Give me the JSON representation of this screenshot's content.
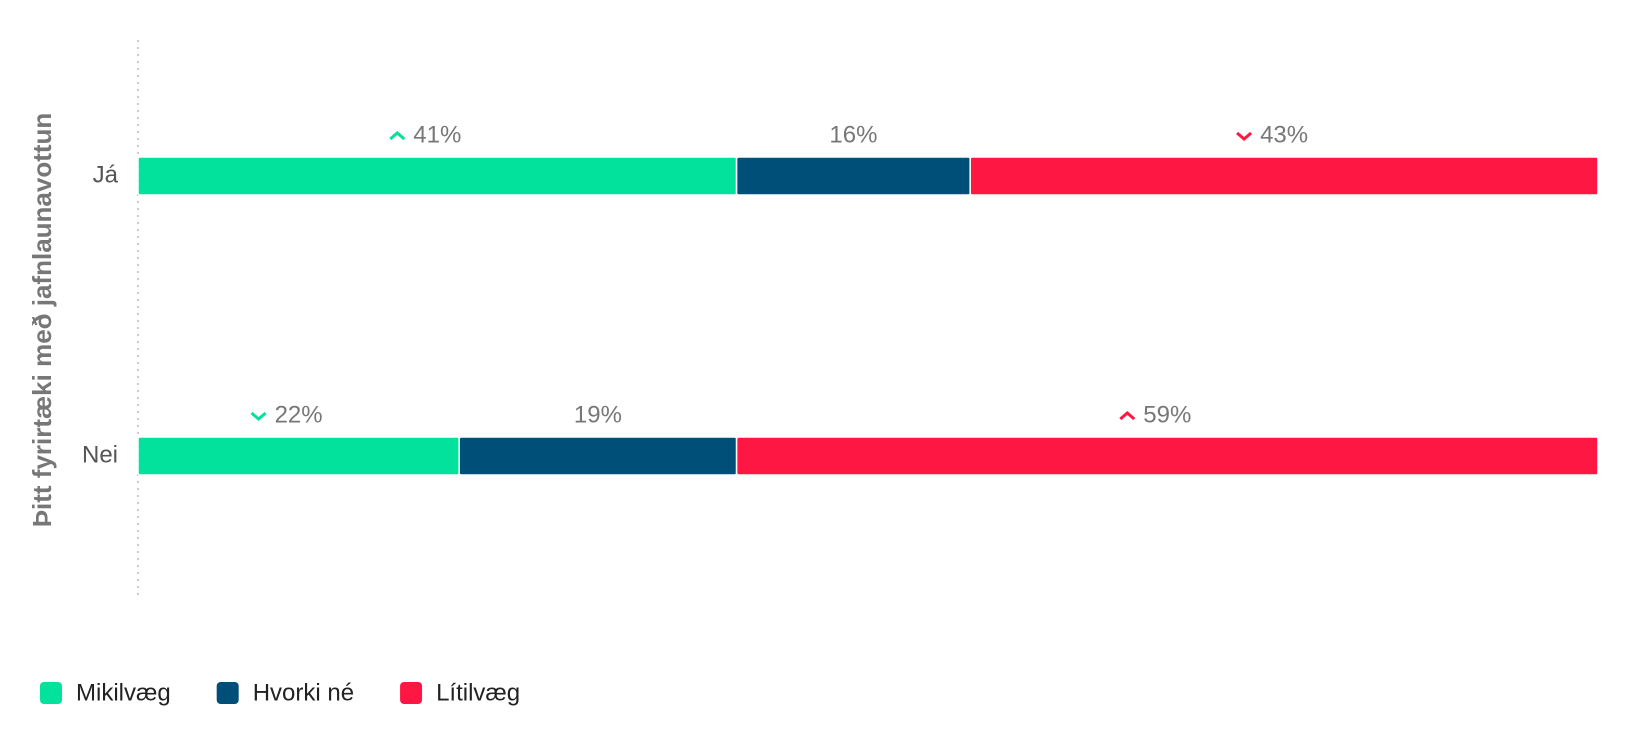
{
  "chart_data": {
    "type": "stacked-bar-horizontal",
    "y_label": "Þitt fyrirtæki með jafnlaunavottun",
    "categories": [
      "Já",
      "Nei"
    ],
    "xlim": [
      0,
      100
    ],
    "legend": "bottom-left",
    "series": [
      {
        "name": "Mikilvæg",
        "color": "#03e29c",
        "values": [
          41,
          22
        ],
        "value_labels": [
          "41%",
          "22%"
        ],
        "indicators": [
          "up",
          "down"
        ]
      },
      {
        "name": "Hvorki né",
        "color": "#004f79",
        "values": [
          16,
          19
        ],
        "value_labels": [
          "16%",
          "19%"
        ]
      },
      {
        "name": "Lítilvæg",
        "color": "#ff1744",
        "values": [
          43,
          59
        ],
        "value_labels": [
          "43%",
          "59%"
        ],
        "indicators": [
          "down",
          "up"
        ]
      }
    ]
  }
}
